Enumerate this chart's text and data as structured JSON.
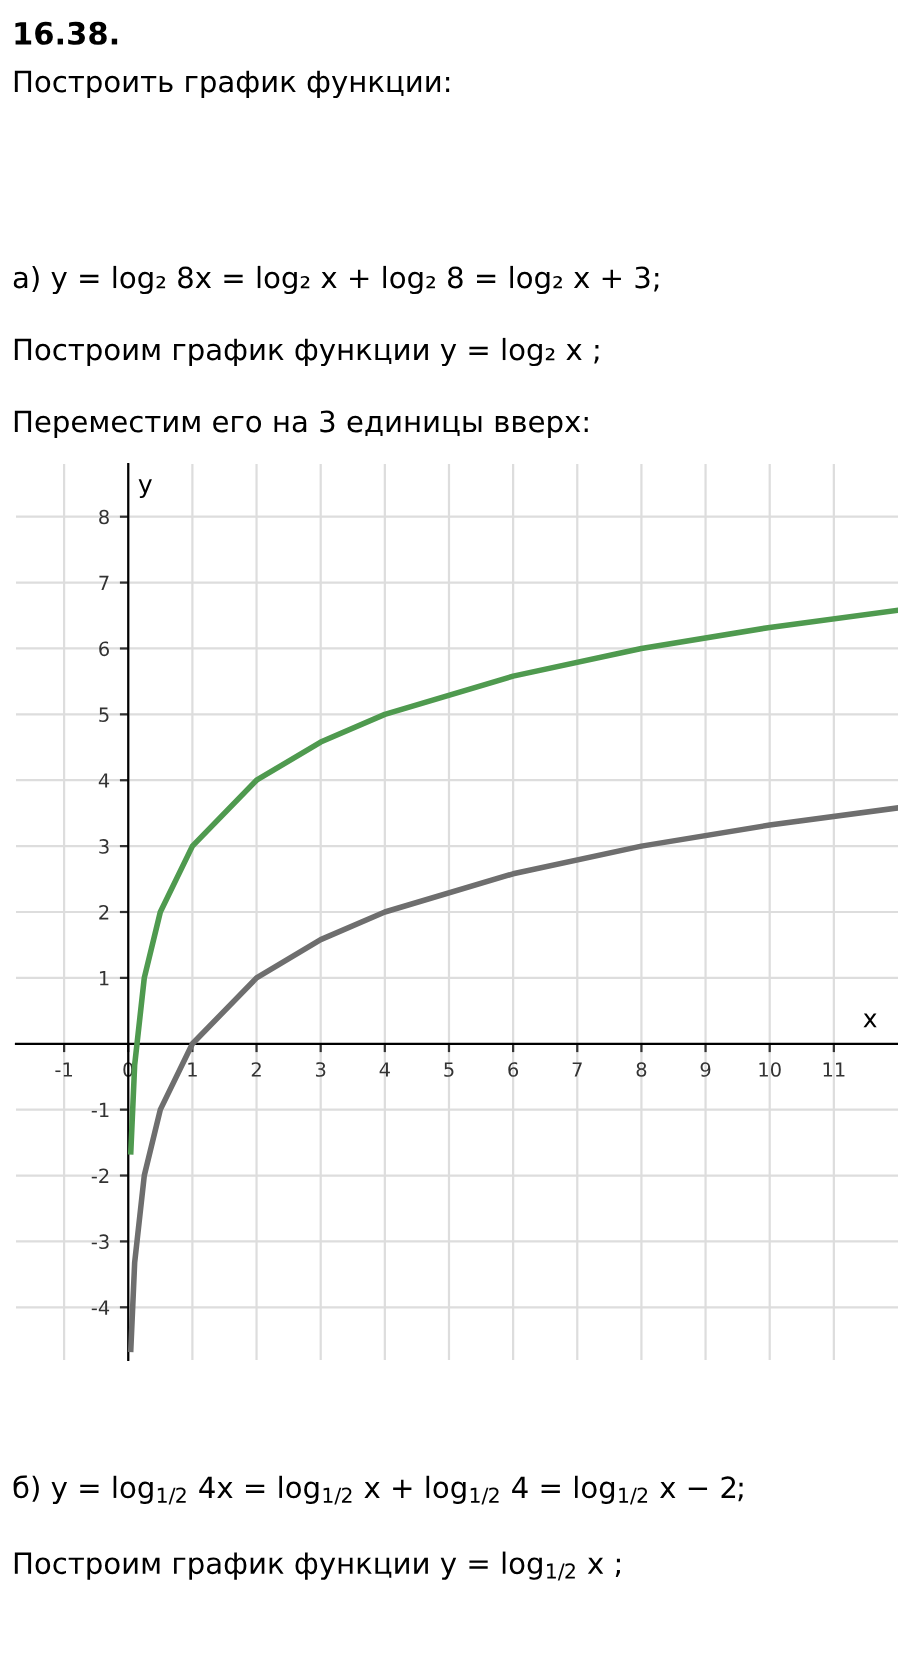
{
  "chart_data": {
    "type": "line",
    "title": "16.38.",
    "annotations": [
      "Построить график функции:",
      "а) y = log₂ 8x = log₂ x + log₂ 8 = log₂ x + 3;",
      "Построим график функции y = log₂ x ;",
      "Переместим его на 3 единицы вверх:",
      "б) y = log$_{1/2}$ 4x = log$_{1/2}$ x + log$_{1/2}$ 4 = log$_{1/2}$ x − 2;",
      "Построим график функции y = log$_{1/2}$ x ;"
    ],
    "xlabel": "x",
    "ylabel": "y",
    "x": [
      0.04,
      0.1,
      0.25,
      0.5,
      1,
      2,
      3,
      4,
      6,
      8,
      10,
      12
    ],
    "series": [
      {
        "color": "#4f9a4f",
        "values": [
          -1.64,
          -0.32,
          1,
          2,
          3,
          4,
          4.58,
          5,
          5.58,
          6,
          6.32,
          6.58
        ]
      },
      {
        "color": "#6e6e6e",
        "values": [
          -4.64,
          -3.32,
          -2,
          -1,
          0,
          1,
          1.58,
          2,
          2.58,
          3,
          3.32,
          3.58
        ]
      }
    ],
    "xlim": [
      -1.75,
      12
    ],
    "ylim": [
      -4.8,
      8.8
    ],
    "xticks": [
      -1,
      0,
      1,
      2,
      3,
      4,
      5,
      6,
      7,
      8,
      9,
      10,
      11
    ],
    "yticks": [
      -4,
      -3,
      -2,
      -1,
      1,
      2,
      3,
      4,
      5,
      6,
      7,
      8
    ],
    "grid": true,
    "legend": false,
    "marker": "none",
    "line_style": "solid"
  }
}
